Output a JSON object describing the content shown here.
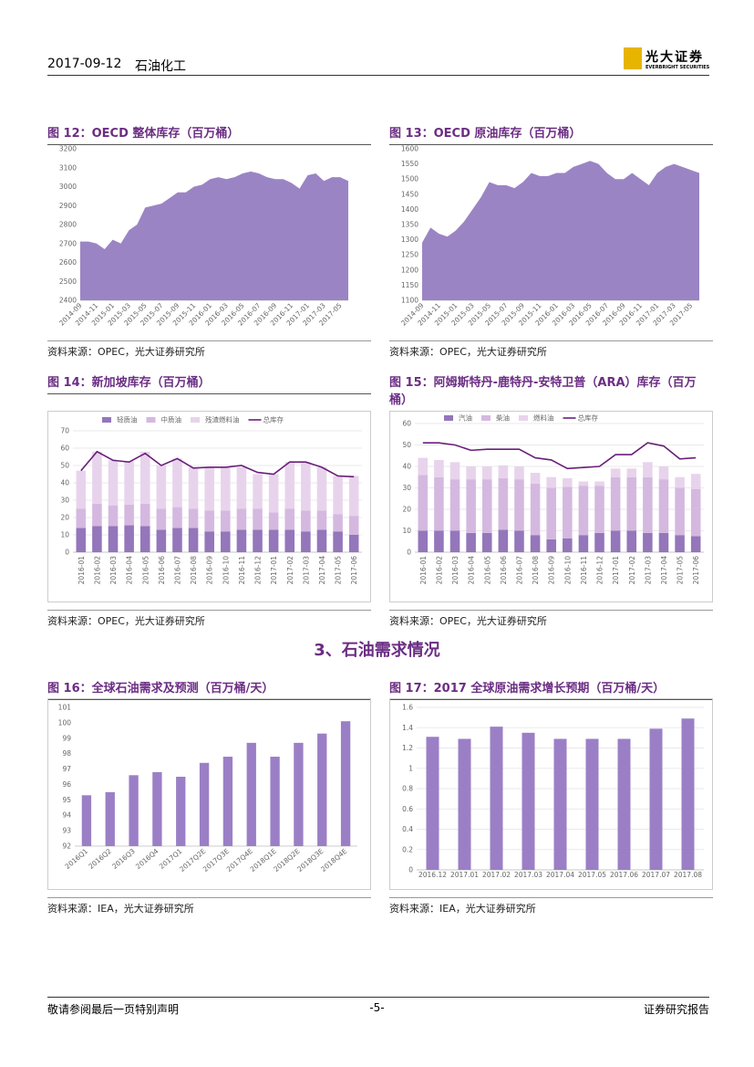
{
  "header": {
    "date": "2017-09-12",
    "sector": "石油化工",
    "logo_cn": "光大证券",
    "logo_en": "EVERBRIGHT SECURITIES"
  },
  "section_title": "3、石油需求情况",
  "footer": {
    "left": "敬请参阅最后一页特别声明",
    "page": "-5-",
    "right": "证券研究报告"
  },
  "chart_data": [
    {
      "type": "area",
      "title": "图 12：OECD 整体库存（百万桶）",
      "source": "资料来源：OPEC，光大证券研究所",
      "color": "#9b84c4",
      "grid": false,
      "categories": [
        "2014-09",
        null,
        "2014-11",
        null,
        "2015-01",
        null,
        "2015-03",
        null,
        "2015-05",
        null,
        "2015-07",
        null,
        "2015-09",
        null,
        "2015-11",
        null,
        "2016-01",
        null,
        "2016-03",
        null,
        "2016-05",
        null,
        "2016-07",
        null,
        "2016-09",
        null,
        "2016-11",
        null,
        "2017-01",
        null,
        "2017-03",
        null,
        "2017-05",
        null
      ],
      "values": [
        2710,
        2710,
        2700,
        2670,
        2720,
        2700,
        2770,
        2800,
        2890,
        2900,
        2910,
        2940,
        2970,
        2970,
        3000,
        3010,
        3040,
        3050,
        3040,
        3050,
        3070,
        3080,
        3070,
        3050,
        3040,
        3040,
        3020,
        2990,
        3060,
        3070,
        3030,
        3050,
        3050,
        3030
      ],
      "ylim": [
        2400,
        3200
      ],
      "yticks": [
        2400,
        2500,
        2600,
        2700,
        2800,
        2900,
        3000,
        3100,
        3200
      ]
    },
    {
      "type": "area",
      "title": "图 13：OECD 原油库存（百万桶）",
      "source": "资料来源：OPEC，光大证券研究所",
      "color": "#9b84c4",
      "grid": false,
      "categories": [
        "2014-09",
        null,
        "2014-11",
        null,
        "2015-01",
        null,
        "2015-03",
        null,
        "2015-05",
        null,
        "2015-07",
        null,
        "2015-09",
        null,
        "2015-11",
        null,
        "2016-01",
        null,
        "2016-03",
        null,
        "2016-05",
        null,
        "2016-07",
        null,
        "2016-09",
        null,
        "2016-11",
        null,
        "2017-01",
        null,
        "2017-03",
        null,
        "2017-05",
        null
      ],
      "values": [
        1290,
        1340,
        1320,
        1310,
        1330,
        1360,
        1400,
        1440,
        1490,
        1480,
        1480,
        1470,
        1490,
        1520,
        1510,
        1510,
        1520,
        1520,
        1540,
        1550,
        1560,
        1550,
        1520,
        1500,
        1500,
        1520,
        1500,
        1480,
        1520,
        1540,
        1550,
        1540,
        1530,
        1520
      ],
      "ylim": [
        1100,
        1600
      ],
      "yticks": [
        1100,
        1150,
        1200,
        1250,
        1300,
        1350,
        1400,
        1450,
        1500,
        1550,
        1600
      ]
    },
    {
      "type": "bar",
      "title": "图 14：新加坡库存（百万桶）",
      "source": "资料来源：OPEC，光大证券研究所",
      "grid": true,
      "categories": [
        "2016-01",
        "2016-02",
        "2016-03",
        "2016-04",
        "2016-05",
        "2016-06",
        "2016-07",
        "2016-08",
        "2016-09",
        "2016-10",
        "2016-11",
        "2016-12",
        "2017-01",
        "2017-02",
        "2017-03",
        "2017-04",
        "2017-05",
        "2017-06"
      ],
      "series": [
        {
          "name": "轻质油",
          "color": "#9476bb",
          "values": [
            14,
            15,
            15,
            15.5,
            15,
            13,
            14,
            14,
            12,
            12,
            13,
            13,
            13,
            13,
            12,
            13,
            12,
            10
          ]
        },
        {
          "name": "中质油",
          "color": "#d5b8e0",
          "values": [
            11,
            13,
            12,
            12,
            13,
            12,
            12,
            11,
            12,
            12,
            12,
            12,
            10,
            12,
            12,
            11,
            10,
            11
          ]
        },
        {
          "name": "残渣燃料油",
          "color": "#e8d3ec",
          "values": [
            22,
            30,
            26,
            25,
            30,
            25,
            28,
            24,
            25,
            25,
            24,
            20,
            22,
            27,
            28,
            25,
            22,
            23
          ]
        },
        {
          "name": "总库存",
          "color": "#6a1f7a",
          "type": "line",
          "values": [
            47,
            58,
            53,
            52,
            57,
            50,
            54,
            48.5,
            49,
            49,
            50,
            46,
            45,
            52,
            52,
            49,
            44,
            43.5
          ]
        }
      ],
      "ylim": [
        0,
        70
      ],
      "yticks": [
        0,
        10,
        20,
        30,
        40,
        50,
        60,
        70
      ]
    },
    {
      "type": "bar",
      "title": "图 15：阿姆斯特丹-鹿特丹-安特卫普（ARA）库存（百万桶）",
      "source": "资料来源：OPEC，光大证券研究所",
      "grid": true,
      "categories": [
        "2016-01",
        "2016-02",
        "2016-03",
        "2016-04",
        "2016-05",
        "2016-06",
        "2016-07",
        "2016-08",
        "2016-09",
        "2016-10",
        "2016-11",
        "2016-12",
        "2017-01",
        "2017-02",
        "2017-03",
        "2017-04",
        "2017-05",
        "2017-06"
      ],
      "series": [
        {
          "name": "汽油",
          "color": "#9476bb",
          "values": [
            10,
            10,
            10,
            9,
            9,
            10.5,
            10,
            8,
            6,
            6.5,
            8,
            9,
            10,
            10,
            9,
            9,
            8,
            7.5
          ]
        },
        {
          "name": "柴油",
          "color": "#d5b8e0",
          "values": [
            26,
            25,
            24,
            25,
            25,
            24,
            24,
            24,
            24,
            24,
            23,
            22,
            25,
            25,
            26,
            25,
            22,
            22
          ]
        },
        {
          "name": "燃料油",
          "color": "#e8d3ec",
          "values": [
            8,
            8,
            8,
            6,
            6,
            6,
            6,
            5,
            5,
            4,
            2,
            2,
            4,
            4,
            7,
            6,
            5,
            7
          ]
        },
        {
          "name": "总库存",
          "color": "#6a1f7a",
          "type": "line",
          "values": [
            51,
            51,
            50,
            47.5,
            48,
            48,
            48,
            44,
            43,
            39,
            39.5,
            40,
            45.5,
            45.5,
            51,
            49.5,
            43.5,
            44
          ]
        }
      ],
      "ylim": [
        0,
        60
      ],
      "yticks": [
        0,
        10,
        20,
        30,
        40,
        50,
        60
      ]
    },
    {
      "type": "bar",
      "title": "图 16：全球石油需求及预测（百万桶/天）",
      "source": "资料来源：IEA，光大证券研究所",
      "color": "#9b7fc6",
      "grid": false,
      "categories": [
        "2016Q1",
        "2016Q2",
        "2016Q3",
        "2016Q4",
        "2017Q1",
        "2017Q2E",
        "2017Q3E",
        "2017Q4E",
        "2018Q1E",
        "2018Q2E",
        "2018Q3E",
        "2018Q4E"
      ],
      "values": [
        95.3,
        95.5,
        96.6,
        96.8,
        96.5,
        97.4,
        97.8,
        98.7,
        97.8,
        98.7,
        99.3,
        100.1
      ],
      "ylim": [
        92,
        101
      ],
      "yticks": [
        92,
        93,
        94,
        95,
        96,
        97,
        98,
        99,
        100,
        101
      ]
    },
    {
      "type": "bar",
      "title": "图 17：2017 全球原油需求增长预期（百万桶/天）",
      "source": "资料来源：IEA，光大证券研究所",
      "color": "#9b7fc6",
      "grid": true,
      "categories": [
        "2016.12",
        "2017.01",
        "2017.02",
        "2017.03",
        "2017.04",
        "2017.05",
        "2017.06",
        "2017.07",
        "2017.08"
      ],
      "values": [
        1.31,
        1.29,
        1.41,
        1.35,
        1.29,
        1.29,
        1.29,
        1.39,
        1.49
      ],
      "ylim": [
        0,
        1.6
      ],
      "yticks": [
        0,
        0.2,
        0.4,
        0.6,
        0.8,
        1,
        1.2,
        1.4,
        1.6
      ]
    }
  ]
}
